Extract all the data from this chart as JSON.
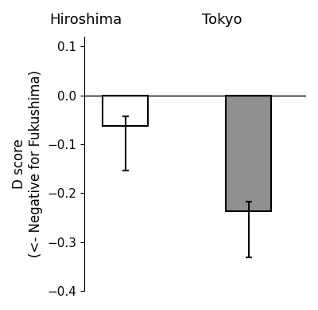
{
  "categories": [
    "Hiroshima",
    "Tokyo"
  ],
  "values": [
    -0.063,
    -0.237
  ],
  "error_lower": [
    0.09,
    0.095
  ],
  "error_upper": [
    0.02,
    0.02
  ],
  "bar_colors": [
    "#ffffff",
    "#909090"
  ],
  "bar_edgecolors": [
    "#000000",
    "#000000"
  ],
  "bar_width": 0.55,
  "ylabel": "D score\n(<- Negative for Fukushima)",
  "ylim": [
    -0.4,
    0.12
  ],
  "yticks": [
    -0.4,
    -0.3,
    -0.2,
    -0.1,
    0.0,
    0.1
  ],
  "bar_positions": [
    1.0,
    2.5
  ],
  "xlim": [
    0.5,
    3.2
  ],
  "label_fontsize": 13,
  "tick_fontsize": 11,
  "ylabel_fontsize": 12,
  "background_color": "#ffffff",
  "error_capsize": 3,
  "error_linewidth": 1.5,
  "hline_y": 0.0
}
